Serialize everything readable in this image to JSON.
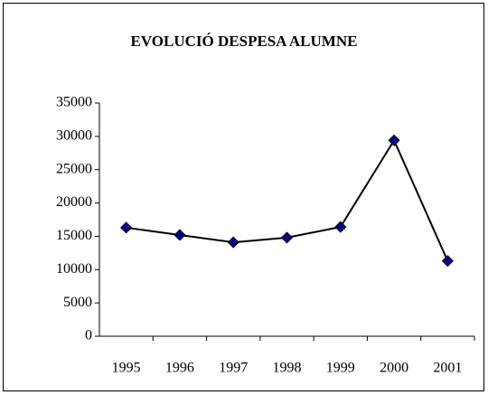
{
  "chart_data": {
    "type": "line",
    "title": "EVOLUCIÓ DESPESA ALUMNE",
    "categories": [
      "1995",
      "1996",
      "1997",
      "1998",
      "1999",
      "2000",
      "2001"
    ],
    "series": [
      {
        "name": null,
        "color": "#000080",
        "values": [
          16300,
          15200,
          14100,
          14800,
          16400,
          29400,
          11300
        ]
      }
    ],
    "ylim": [
      0,
      35000
    ],
    "yticks": [
      0,
      5000,
      10000,
      15000,
      20000,
      25000,
      30000,
      35000
    ],
    "grid": false
  }
}
